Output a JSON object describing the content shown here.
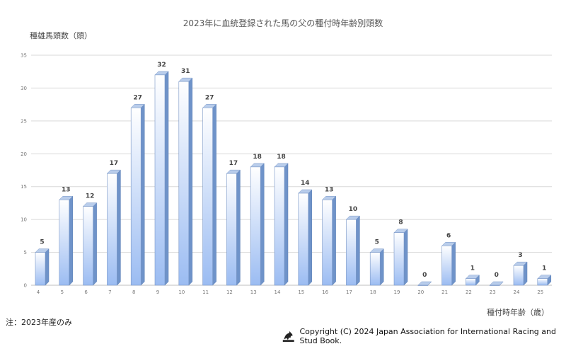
{
  "chart_data": {
    "type": "bar",
    "title": "2023年に血統登録された馬の父の種付時年齢別頭数",
    "ylabel": "種雄馬頭数（頭）",
    "xlabel": "種付時年齢（歳）",
    "categories": [
      "4",
      "5",
      "6",
      "7",
      "8",
      "9",
      "10",
      "11",
      "12",
      "13",
      "14",
      "15",
      "16",
      "17",
      "18",
      "19",
      "20",
      "21",
      "22",
      "23",
      "24",
      "25"
    ],
    "values": [
      5,
      13,
      12,
      17,
      27,
      32,
      31,
      27,
      17,
      18,
      18,
      14,
      13,
      10,
      5,
      8,
      0,
      6,
      1,
      0,
      3,
      1
    ],
    "ylim": [
      0,
      35
    ],
    "yticks": [
      "0",
      "5",
      "10",
      "15",
      "20",
      "25",
      "30",
      "35"
    ],
    "grid": true,
    "legend": "none"
  },
  "note": "注：2023年産のみ",
  "copyright": "Copyright (C) 2024  Japan Association for International Racing and Stud Book.",
  "logo_icon": "jairs-horse-logo",
  "colors": {
    "bar_top": "#c8d8f0",
    "bar_bottom": "#9bbcf2",
    "bar_edge": "#6a8fc7",
    "grid": "#d9d9d9"
  }
}
